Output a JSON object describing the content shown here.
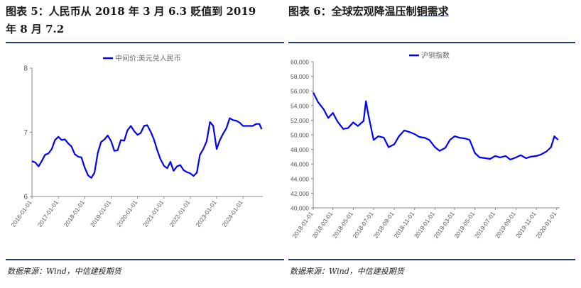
{
  "left": {
    "title_line1": "图表 5：人民币从 2018 年 3 月 6.3 贬值到 2019",
    "title_line2": "年 8 月 7.2",
    "source": "数据来源：Wind，中信建投期货"
  },
  "right": {
    "title_prefix": "图表 6：全球宏观降温压制",
    "title_underlined": "铜需求",
    "source": "数据来源：Wind，中信建投期货"
  },
  "chart_data": [
    {
      "type": "line",
      "legend": "中间价:美元兑人民币",
      "legend_position": "top-center",
      "ylim": [
        6,
        8
      ],
      "yticks": [
        "6",
        "7",
        "8"
      ],
      "xlim": [
        "2016-01-01",
        "2024-10-01"
      ],
      "xticks": [
        "2016-01-01",
        "2017-01-01",
        "2018-01-01",
        "2019-01-01",
        "2020-01-01",
        "2021-01-01",
        "2022-01-01",
        "2023-01-01",
        "2024-01-01"
      ],
      "grid": false,
      "color": "#0000ff",
      "series": [
        {
          "x": [
            "2016-01-01",
            "2016-02-15",
            "2016-04-01",
            "2016-05-15",
            "2016-07-01",
            "2016-08-15",
            "2016-10-01",
            "2016-11-15",
            "2017-01-01",
            "2017-02-15",
            "2017-04-01",
            "2017-05-15",
            "2017-07-01",
            "2017-08-15",
            "2017-10-01",
            "2017-11-15",
            "2018-01-01",
            "2018-02-15",
            "2018-04-01",
            "2018-05-15",
            "2018-07-01",
            "2018-08-15",
            "2018-10-01",
            "2018-11-15",
            "2019-01-01",
            "2019-02-15",
            "2019-04-01",
            "2019-05-15",
            "2019-07-01",
            "2019-08-15",
            "2019-10-01",
            "2019-11-15",
            "2020-01-01",
            "2020-02-15",
            "2020-04-01",
            "2020-05-15",
            "2020-07-01",
            "2020-08-15",
            "2020-10-01",
            "2020-11-15",
            "2021-01-01",
            "2021-02-15",
            "2021-04-01",
            "2021-05-15",
            "2021-07-01",
            "2021-08-15",
            "2021-10-01",
            "2021-11-15",
            "2022-01-01",
            "2022-02-15",
            "2022-04-01",
            "2022-05-15",
            "2022-07-01",
            "2022-08-15",
            "2022-10-01",
            "2022-11-15",
            "2023-01-01",
            "2023-02-15",
            "2023-04-01",
            "2023-05-15",
            "2023-07-01",
            "2023-08-15",
            "2023-10-01",
            "2023-11-15",
            "2024-01-01",
            "2024-02-15",
            "2024-04-01",
            "2024-05-15",
            "2024-07-01",
            "2024-08-15",
            "2024-09-15"
          ],
          "y": [
            6.55,
            6.53,
            6.47,
            6.55,
            6.65,
            6.67,
            6.74,
            6.88,
            6.93,
            6.88,
            6.89,
            6.83,
            6.78,
            6.66,
            6.62,
            6.61,
            6.45,
            6.33,
            6.29,
            6.37,
            6.68,
            6.85,
            6.89,
            6.95,
            6.86,
            6.71,
            6.72,
            6.88,
            6.87,
            7.03,
            7.1,
            7.02,
            6.96,
            6.99,
            7.1,
            7.11,
            7.01,
            6.89,
            6.72,
            6.58,
            6.48,
            6.44,
            6.54,
            6.4,
            6.47,
            6.49,
            6.41,
            6.38,
            6.36,
            6.32,
            6.37,
            6.65,
            6.74,
            6.86,
            7.16,
            7.1,
            6.74,
            6.88,
            6.98,
            7.06,
            7.22,
            7.19,
            7.18,
            7.15,
            7.1,
            7.1,
            7.1,
            7.1,
            7.13,
            7.13,
            7.05
          ]
        }
      ]
    },
    {
      "type": "line",
      "legend": "沪铜指数",
      "legend_position": "top-left",
      "ylim": [
        40000,
        60000
      ],
      "yticks": [
        "40,000",
        "42,000",
        "44,000",
        "46,000",
        "48,000",
        "50,000",
        "52,000",
        "54,000",
        "56,000",
        "58,000",
        "60,000"
      ],
      "xlim": [
        "2018-01-01",
        "2020-01-10"
      ],
      "xticks": [
        "2018-01-01",
        "2018-03-01",
        "2018-05-01",
        "2018-07-01",
        "2018-09-01",
        "2018-11-01",
        "2019-01-01",
        "2019-03-01",
        "2019-05-01",
        "2019-07-01",
        "2019-09-01",
        "2019-11-01",
        "2020-01-01"
      ],
      "grid": false,
      "color": "#0000ff",
      "series": [
        {
          "x": [
            "2018-01-01",
            "2018-01-15",
            "2018-02-01",
            "2018-02-15",
            "2018-03-01",
            "2018-03-15",
            "2018-04-01",
            "2018-04-15",
            "2018-05-01",
            "2018-05-15",
            "2018-06-01",
            "2018-06-08",
            "2018-06-15",
            "2018-07-01",
            "2018-07-15",
            "2018-08-01",
            "2018-08-15",
            "2018-09-01",
            "2018-09-15",
            "2018-10-01",
            "2018-10-15",
            "2018-11-01",
            "2018-11-15",
            "2018-12-01",
            "2018-12-15",
            "2019-01-01",
            "2019-01-15",
            "2019-02-01",
            "2019-02-15",
            "2019-03-01",
            "2019-03-15",
            "2019-04-01",
            "2019-04-15",
            "2019-05-01",
            "2019-05-15",
            "2019-06-01",
            "2019-06-15",
            "2019-07-01",
            "2019-07-15",
            "2019-08-01",
            "2019-08-15",
            "2019-09-01",
            "2019-09-15",
            "2019-10-01",
            "2019-10-15",
            "2019-11-01",
            "2019-11-15",
            "2019-12-01",
            "2019-12-15",
            "2019-12-25",
            "2020-01-05"
          ],
          "y": [
            55800,
            54500,
            53500,
            52300,
            53000,
            51800,
            50800,
            50900,
            51700,
            51200,
            51900,
            54600,
            52800,
            49300,
            49800,
            49600,
            48300,
            48700,
            49800,
            50600,
            50400,
            50100,
            49700,
            49600,
            49300,
            48300,
            47800,
            48200,
            49300,
            49800,
            49600,
            49500,
            49300,
            47500,
            46900,
            46800,
            46700,
            47100,
            46900,
            47100,
            46600,
            46900,
            47200,
            46800,
            47000,
            47100,
            47300,
            47700,
            48300,
            49800,
            49300
          ]
        }
      ]
    }
  ]
}
